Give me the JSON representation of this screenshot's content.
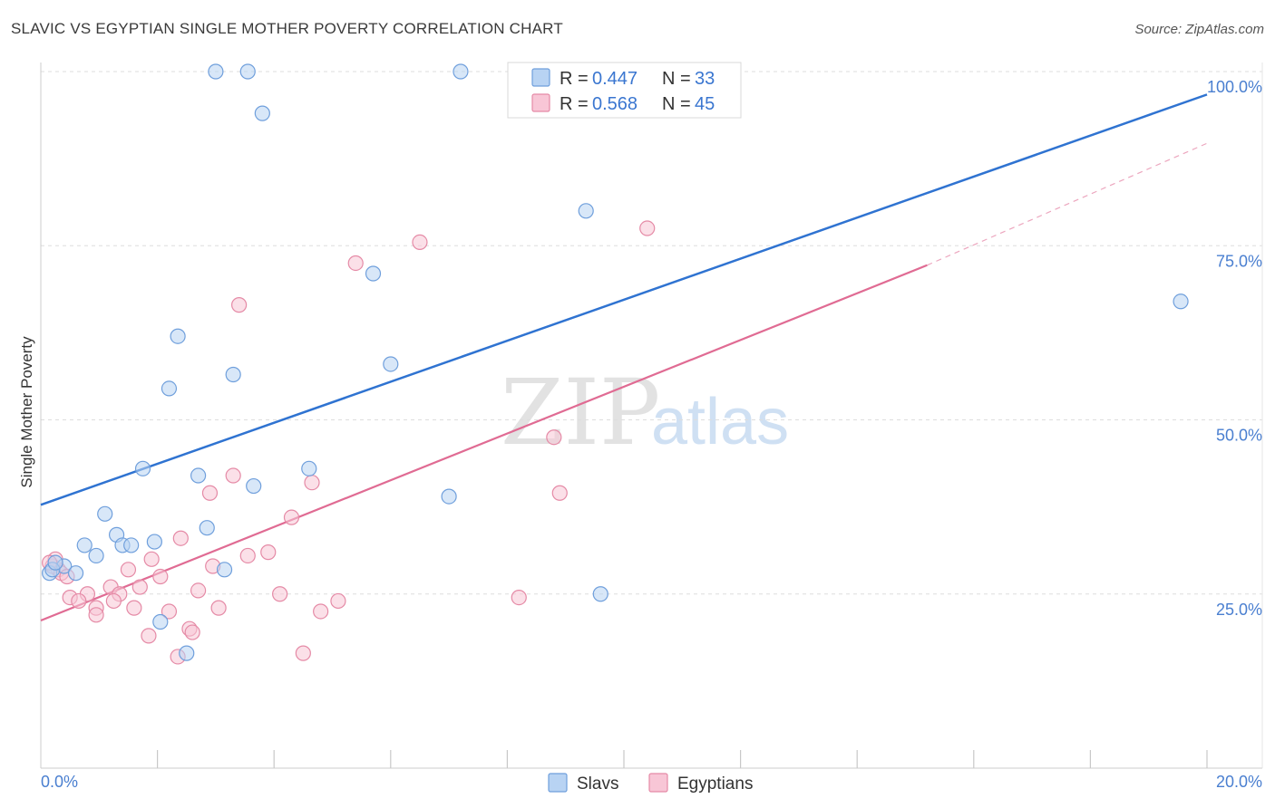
{
  "title": "SLAVIC VS EGYPTIAN SINGLE MOTHER POVERTY CORRELATION CHART",
  "source": "Source: ZipAtlas.com",
  "watermark": {
    "zip": "ZIP",
    "atlas": "atlas"
  },
  "colors": {
    "slavs_fill": "#b8d3f3",
    "slavs_stroke": "#6f9fdc",
    "slavs_line": "#2f73d1",
    "egypt_fill": "#f8c6d6",
    "egypt_stroke": "#e58aa6",
    "egypt_line": "#e06b93",
    "accent_text": "#3a76d0",
    "grid": "#dddddd"
  },
  "stats": {
    "slavs": {
      "r_label": "R = ",
      "r": "0.447",
      "n_label": "N = ",
      "n": "33"
    },
    "egyptians": {
      "r_label": "R = ",
      "r": "0.568",
      "n_label": "N = ",
      "n": "45"
    }
  },
  "legend": {
    "slavs": "Slavs",
    "egyptians": "Egyptians"
  },
  "chart_data": {
    "type": "scatter",
    "title": "SLAVIC VS EGYPTIAN SINGLE MOTHER POVERTY CORRELATION CHART",
    "xlabel": "",
    "ylabel": "Single Mother Poverty",
    "xlim": [
      0,
      20
    ],
    "ylim": [
      0,
      102
    ],
    "x_tick_labels": [
      {
        "value": 0,
        "label": "0.0%"
      },
      {
        "value": 20,
        "label": "20.0%"
      }
    ],
    "y_tick_labels": [
      {
        "value": 25,
        "label": "25.0%"
      },
      {
        "value": 50,
        "label": "50.0%"
      },
      {
        "value": 75,
        "label": "75.0%"
      },
      {
        "value": 100,
        "label": "100.0%"
      }
    ],
    "x_minor_ticks": [
      2,
      4,
      6,
      8,
      10,
      12,
      14,
      16,
      18,
      20
    ],
    "series": [
      {
        "name": "Slavs",
        "points": [
          [
            3.0,
            100.0
          ],
          [
            3.55,
            100.0
          ],
          [
            7.2,
            100.0
          ],
          [
            3.8,
            94.0
          ],
          [
            9.35,
            80.0
          ],
          [
            19.55,
            67.0
          ],
          [
            5.7,
            71.0
          ],
          [
            2.35,
            62.0
          ],
          [
            6.0,
            58.0
          ],
          [
            2.2,
            54.5
          ],
          [
            3.3,
            56.5
          ],
          [
            1.75,
            43.0
          ],
          [
            2.7,
            42.0
          ],
          [
            4.6,
            43.0
          ],
          [
            3.65,
            40.5
          ],
          [
            7.0,
            39.0
          ],
          [
            1.1,
            36.5
          ],
          [
            1.3,
            33.5
          ],
          [
            2.85,
            34.5
          ],
          [
            0.75,
            32.0
          ],
          [
            1.4,
            32.0
          ],
          [
            1.55,
            32.0
          ],
          [
            1.95,
            32.5
          ],
          [
            0.95,
            30.5
          ],
          [
            0.4,
            29.0
          ],
          [
            0.15,
            28.0
          ],
          [
            0.6,
            28.0
          ],
          [
            3.15,
            28.5
          ],
          [
            9.6,
            25.0
          ],
          [
            2.05,
            21.0
          ],
          [
            2.5,
            16.5
          ],
          [
            0.2,
            28.5
          ],
          [
            0.25,
            29.5
          ]
        ],
        "trend": {
          "x": [
            0,
            20
          ],
          "y": [
            37.8,
            96.7
          ]
        }
      },
      {
        "name": "Egyptians",
        "points": [
          [
            6.5,
            75.5
          ],
          [
            10.4,
            77.5
          ],
          [
            5.4,
            72.5
          ],
          [
            3.4,
            66.5
          ],
          [
            8.8,
            47.5
          ],
          [
            3.3,
            42.0
          ],
          [
            4.65,
            41.0
          ],
          [
            2.9,
            39.5
          ],
          [
            8.9,
            39.5
          ],
          [
            4.3,
            36.0
          ],
          [
            2.4,
            33.0
          ],
          [
            1.9,
            30.0
          ],
          [
            3.55,
            30.5
          ],
          [
            3.9,
            31.0
          ],
          [
            2.95,
            29.0
          ],
          [
            1.5,
            28.5
          ],
          [
            0.3,
            28.5
          ],
          [
            2.05,
            27.5
          ],
          [
            1.2,
            26.0
          ],
          [
            1.7,
            26.0
          ],
          [
            0.8,
            25.0
          ],
          [
            1.35,
            25.0
          ],
          [
            2.7,
            25.5
          ],
          [
            4.1,
            25.0
          ],
          [
            0.5,
            24.5
          ],
          [
            0.65,
            24.0
          ],
          [
            1.25,
            24.0
          ],
          [
            5.1,
            24.0
          ],
          [
            8.2,
            24.5
          ],
          [
            0.95,
            23.0
          ],
          [
            1.6,
            23.0
          ],
          [
            3.05,
            23.0
          ],
          [
            2.2,
            22.5
          ],
          [
            4.8,
            22.5
          ],
          [
            0.95,
            22.0
          ],
          [
            2.55,
            20.0
          ],
          [
            2.6,
            19.5
          ],
          [
            1.85,
            19.0
          ],
          [
            4.5,
            16.5
          ],
          [
            2.35,
            16.0
          ],
          [
            0.2,
            29.0
          ],
          [
            0.25,
            30.0
          ],
          [
            0.15,
            29.5
          ],
          [
            0.35,
            28.0
          ],
          [
            0.45,
            27.5
          ]
        ],
        "trend": {
          "x": [
            0,
            15.2
          ],
          "y": [
            21.2,
            72.2
          ]
        },
        "trend_extension": {
          "x": [
            15.2,
            20
          ],
          "y": [
            72.2,
            89.7
          ]
        }
      }
    ]
  }
}
